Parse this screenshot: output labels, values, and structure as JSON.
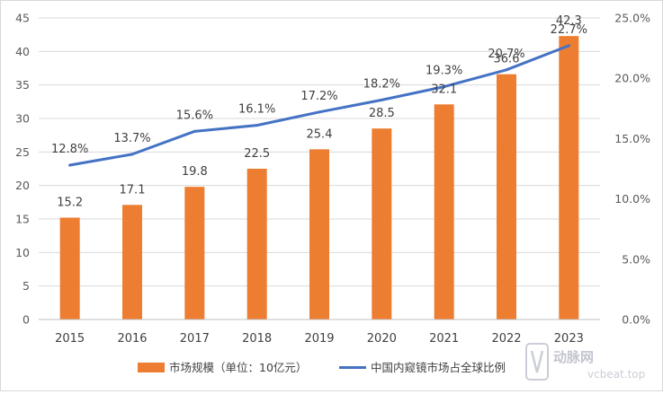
{
  "chart_data": {
    "type": "bar+line",
    "categories": [
      "2015",
      "2016",
      "2017",
      "2018",
      "2019",
      "2020",
      "2021",
      "2022",
      "2023"
    ],
    "series": [
      {
        "name": "市场规模（单位：10亿元）",
        "type": "bar",
        "axis": "left",
        "color": "#ED7D31",
        "values": [
          15.2,
          17.1,
          19.8,
          22.5,
          25.4,
          28.5,
          32.1,
          36.6,
          42.3
        ],
        "labels": [
          "15.2",
          "17.1",
          "19.8",
          "22.5",
          "25.4",
          "28.5",
          "32.1",
          "36.6",
          "42.3"
        ]
      },
      {
        "name": "中国内窥镜市场占全球比例",
        "type": "line",
        "axis": "right",
        "color": "#4472C4",
        "values": [
          12.8,
          13.7,
          15.6,
          16.1,
          17.2,
          18.2,
          19.3,
          20.7,
          22.7
        ],
        "labels": [
          "12.8%",
          "13.7%",
          "15.6%",
          "16.1%",
          "17.2%",
          "18.2%",
          "19.3%",
          "20.7%",
          "22.7%"
        ]
      }
    ],
    "y_left": {
      "ylim": [
        0,
        45
      ],
      "ticks": [
        0,
        5,
        10,
        15,
        20,
        25,
        30,
        35,
        40,
        45
      ],
      "tick_labels": [
        "0",
        "5",
        "10",
        "15",
        "20",
        "25",
        "30",
        "35",
        "40",
        "45"
      ]
    },
    "y_right": {
      "ylim": [
        0,
        25
      ],
      "ticks": [
        0,
        5,
        10,
        15,
        20,
        25
      ],
      "tick_labels": [
        "0.0%",
        "5.0%",
        "10.0%",
        "15.0%",
        "20.0%",
        "25.0%"
      ]
    },
    "grid": true,
    "legend_position": "bottom",
    "title": "",
    "xlabel": "",
    "ylabel": ""
  },
  "watermark": {
    "brand": "动脉网",
    "site": "vcbeat.top"
  }
}
